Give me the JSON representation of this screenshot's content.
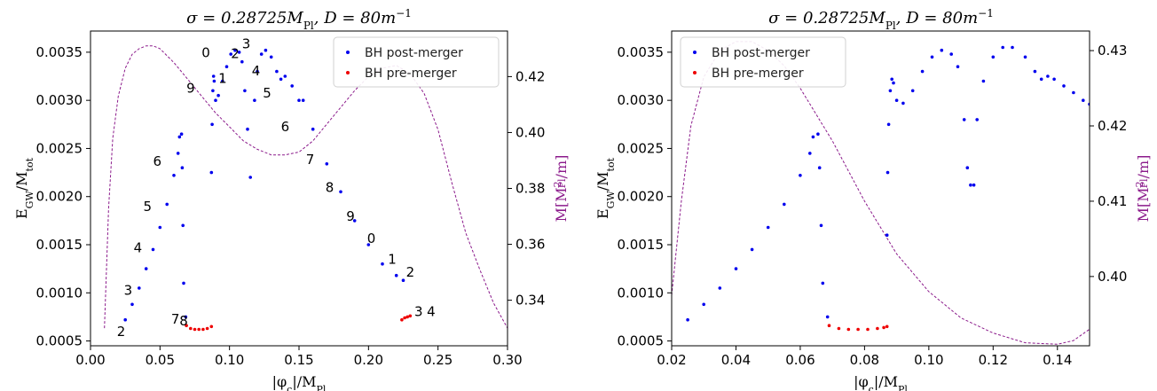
{
  "figure": {
    "panels": [
      {
        "title": "σ = 0.28725M_Pl, D = 80m⁻¹",
        "xlabel": "|φc|/M_Pl",
        "ylabel": "E_GW/M_tot",
        "y2label": "M[M²_Pl/m]",
        "legend": [
          "BH post-merger",
          "BH pre-merger"
        ]
      },
      {
        "title": "σ = 0.28725M_Pl, D = 80m⁻¹",
        "xlabel": "|φc|/M_Pl",
        "ylabel": "E_GW/M_tot",
        "y2label": "M[M²_Pl/m]",
        "legend": [
          "BH post-merger",
          "BH pre-merger"
        ]
      }
    ]
  },
  "chart_data": [
    {
      "type": "scatter",
      "title": "σ = 0.28725M_Pl, D = 80m⁻¹",
      "xlabel": "|φc|/M_Pl",
      "ylabel": "E_GW/M_tot",
      "y2label": "M[M²_Pl/m]",
      "xlim": [
        0.0,
        0.3
      ],
      "ylim": [
        0.00045,
        0.00372
      ],
      "y2lim": [
        0.3237,
        0.4363
      ],
      "x_ticks": [
        "0.00",
        "0.05",
        "0.10",
        "0.15",
        "0.20",
        "0.25",
        "0.30"
      ],
      "y_ticks": [
        "0.0005",
        "0.0010",
        "0.0015",
        "0.0020",
        "0.0025",
        "0.0030",
        "0.0035"
      ],
      "y2_ticks": [
        "0.34",
        "0.36",
        "0.38",
        "0.40",
        "0.42"
      ],
      "legend_position": "top-right",
      "grid": false,
      "colors": {
        "post": "#0000ee",
        "pre": "#ee0000",
        "mass": "#8b1a8b"
      },
      "series": [
        {
          "name": "BH post-merger",
          "points": [
            [
              0.025,
              0.00072
            ],
            [
              0.03,
              0.00088
            ],
            [
              0.035,
              0.00105
            ],
            [
              0.04,
              0.00125
            ],
            [
              0.045,
              0.00145
            ],
            [
              0.05,
              0.00168
            ],
            [
              0.055,
              0.00192
            ],
            [
              0.06,
              0.00222
            ],
            [
              0.063,
              0.00245
            ],
            [
              0.064,
              0.00262
            ],
            [
              0.0655,
              0.00265
            ],
            [
              0.066,
              0.0023
            ],
            [
              0.0665,
              0.0017
            ],
            [
              0.067,
              0.0011
            ],
            [
              0.0685,
              0.00075
            ],
            [
              0.087,
              0.00225
            ],
            [
              0.0875,
              0.00275
            ],
            [
              0.088,
              0.0031
            ],
            [
              0.0885,
              0.00325
            ],
            [
              0.089,
              0.0032
            ],
            [
              0.09,
              0.003
            ],
            [
              0.092,
              0.00305
            ],
            [
              0.095,
              0.0032
            ],
            [
              0.098,
              0.00335
            ],
            [
              0.101,
              0.00348
            ],
            [
              0.104,
              0.00352
            ],
            [
              0.107,
              0.0035
            ],
            [
              0.109,
              0.0034
            ],
            [
              0.111,
              0.0031
            ],
            [
              0.113,
              0.0027
            ],
            [
              0.115,
              0.0022
            ],
            [
              0.118,
              0.003
            ],
            [
              0.12,
              0.0033
            ],
            [
              0.123,
              0.00348
            ],
            [
              0.126,
              0.00352
            ],
            [
              0.13,
              0.00345
            ],
            [
              0.134,
              0.0033
            ],
            [
              0.137,
              0.00322
            ],
            [
              0.14,
              0.00325
            ],
            [
              0.145,
              0.00315
            ],
            [
              0.15,
              0.003
            ],
            [
              0.153,
              0.003
            ],
            [
              0.16,
              0.0027
            ],
            [
              0.17,
              0.00234
            ],
            [
              0.18,
              0.00205
            ],
            [
              0.19,
              0.00175
            ],
            [
              0.2,
              0.0015
            ],
            [
              0.21,
              0.0013
            ],
            [
              0.22,
              0.00118
            ],
            [
              0.225,
              0.00113
            ]
          ]
        },
        {
          "name": "BH pre-merger",
          "points": [
            [
              0.069,
              0.00066
            ],
            [
              0.072,
              0.00063
            ],
            [
              0.075,
              0.00062
            ],
            [
              0.078,
              0.00062
            ],
            [
              0.081,
              0.00062
            ],
            [
              0.084,
              0.00063
            ],
            [
              0.087,
              0.00065
            ],
            [
              0.224,
              0.00072
            ],
            [
              0.226,
              0.00074
            ],
            [
              0.228,
              0.00075
            ],
            [
              0.23,
              0.00076
            ]
          ]
        },
        {
          "name": "M",
          "axis": "y2",
          "style": "dashed-line",
          "points": [
            [
              0.01,
              0.33
            ],
            [
              0.013,
              0.373
            ],
            [
              0.016,
              0.398
            ],
            [
              0.02,
              0.413
            ],
            [
              0.025,
              0.423
            ],
            [
              0.03,
              0.428
            ],
            [
              0.035,
              0.43
            ],
            [
              0.04,
              0.431
            ],
            [
              0.045,
              0.431
            ],
            [
              0.05,
              0.43
            ],
            [
              0.06,
              0.425
            ],
            [
              0.07,
              0.419
            ],
            [
              0.08,
              0.413
            ],
            [
              0.09,
              0.407
            ],
            [
              0.1,
              0.402
            ],
            [
              0.11,
              0.397
            ],
            [
              0.12,
              0.394
            ],
            [
              0.13,
              0.392
            ],
            [
              0.14,
              0.392
            ],
            [
              0.15,
              0.393
            ],
            [
              0.16,
              0.397
            ],
            [
              0.17,
              0.403
            ],
            [
              0.18,
              0.409
            ],
            [
              0.19,
              0.415
            ],
            [
              0.2,
              0.42
            ],
            [
              0.21,
              0.423
            ],
            [
              0.22,
              0.424
            ],
            [
              0.23,
              0.421
            ],
            [
              0.24,
              0.414
            ],
            [
              0.25,
              0.401
            ],
            [
              0.26,
              0.382
            ],
            [
              0.27,
              0.364
            ],
            [
              0.28,
              0.351
            ],
            [
              0.29,
              0.339
            ],
            [
              0.3,
              0.33
            ]
          ]
        }
      ],
      "annotations": [
        {
          "text": "2",
          "x": 0.019,
          "y": 0.00055
        },
        {
          "text": "3",
          "x": 0.024,
          "y": 0.00098
        },
        {
          "text": "4",
          "x": 0.031,
          "y": 0.00142
        },
        {
          "text": "5",
          "x": 0.038,
          "y": 0.00185
        },
        {
          "text": "6",
          "x": 0.045,
          "y": 0.00232
        },
        {
          "text": "7",
          "x": 0.058,
          "y": 0.00068
        },
        {
          "text": "8",
          "x": 0.064,
          "y": 0.00066
        },
        {
          "text": "9",
          "x": 0.069,
          "y": 0.00308
        },
        {
          "text": "0",
          "x": 0.08,
          "y": 0.00345
        },
        {
          "text": "1",
          "x": 0.092,
          "y": 0.00318
        },
        {
          "text": "2",
          "x": 0.101,
          "y": 0.00344
        },
        {
          "text": "3",
          "x": 0.109,
          "y": 0.00354
        },
        {
          "text": "4",
          "x": 0.116,
          "y": 0.00326
        },
        {
          "text": "5",
          "x": 0.124,
          "y": 0.00303
        },
        {
          "text": "6",
          "x": 0.137,
          "y": 0.00268
        },
        {
          "text": "7",
          "x": 0.155,
          "y": 0.00234
        },
        {
          "text": "8",
          "x": 0.169,
          "y": 0.00205
        },
        {
          "text": "9",
          "x": 0.184,
          "y": 0.00175
        },
        {
          "text": "0",
          "x": 0.199,
          "y": 0.00152
        },
        {
          "text": "1",
          "x": 0.214,
          "y": 0.0013
        },
        {
          "text": "2",
          "x": 0.227,
          "y": 0.00117
        },
        {
          "text": "3",
          "x": 0.233,
          "y": 0.00076
        },
        {
          "text": "4",
          "x": 0.242,
          "y": 0.00076
        }
      ]
    },
    {
      "type": "scatter",
      "title": "σ = 0.28725M_Pl, D = 80m⁻¹",
      "xlabel": "|φc|/M_Pl",
      "ylabel": "E_GW/M_tot",
      "y2label": "M[M²_Pl/m]",
      "xlim": [
        0.02,
        0.15
      ],
      "ylim": [
        0.00045,
        0.00372
      ],
      "y2lim": [
        0.3908,
        0.4326
      ],
      "x_ticks": [
        "0.02",
        "0.04",
        "0.06",
        "0.08",
        "0.10",
        "0.12",
        "0.14"
      ],
      "y_ticks": [
        "0.0005",
        "0.0010",
        "0.0015",
        "0.0020",
        "0.0025",
        "0.0030",
        "0.0035"
      ],
      "y2_ticks": [
        "0.40",
        "0.41",
        "0.42",
        "0.43"
      ],
      "legend_position": "top-left",
      "grid": false,
      "colors": {
        "post": "#0000ee",
        "pre": "#ee0000",
        "mass": "#8b1a8b"
      },
      "series": [
        {
          "name": "BH post-merger",
          "points": [
            [
              0.025,
              0.00072
            ],
            [
              0.03,
              0.00088
            ],
            [
              0.035,
              0.00105
            ],
            [
              0.04,
              0.00125
            ],
            [
              0.045,
              0.00145
            ],
            [
              0.05,
              0.00168
            ],
            [
              0.055,
              0.00192
            ],
            [
              0.06,
              0.00222
            ],
            [
              0.063,
              0.00245
            ],
            [
              0.064,
              0.00262
            ],
            [
              0.0655,
              0.00265
            ],
            [
              0.066,
              0.0023
            ],
            [
              0.0665,
              0.0017
            ],
            [
              0.067,
              0.0011
            ],
            [
              0.0685,
              0.00075
            ],
            [
              0.087,
              0.0016
            ],
            [
              0.0872,
              0.00225
            ],
            [
              0.0875,
              0.00275
            ],
            [
              0.088,
              0.0031
            ],
            [
              0.0885,
              0.00322
            ],
            [
              0.089,
              0.00318
            ],
            [
              0.09,
              0.003
            ],
            [
              0.092,
              0.00297
            ],
            [
              0.095,
              0.0031
            ],
            [
              0.098,
              0.0033
            ],
            [
              0.101,
              0.00345
            ],
            [
              0.104,
              0.00352
            ],
            [
              0.107,
              0.00348
            ],
            [
              0.109,
              0.00335
            ],
            [
              0.111,
              0.0028
            ],
            [
              0.112,
              0.0023
            ],
            [
              0.113,
              0.00212
            ],
            [
              0.114,
              0.00212
            ],
            [
              0.115,
              0.0028
            ],
            [
              0.117,
              0.0032
            ],
            [
              0.12,
              0.00345
            ],
            [
              0.123,
              0.00355
            ],
            [
              0.126,
              0.00355
            ],
            [
              0.13,
              0.00345
            ],
            [
              0.133,
              0.0033
            ],
            [
              0.135,
              0.00322
            ],
            [
              0.137,
              0.00325
            ],
            [
              0.139,
              0.00322
            ],
            [
              0.142,
              0.00315
            ],
            [
              0.145,
              0.00308
            ],
            [
              0.148,
              0.003
            ],
            [
              0.15,
              0.00296
            ]
          ]
        },
        {
          "name": "BH pre-merger",
          "points": [
            [
              0.069,
              0.00066
            ],
            [
              0.072,
              0.00063
            ],
            [
              0.075,
              0.00062
            ],
            [
              0.078,
              0.00062
            ],
            [
              0.081,
              0.00062
            ],
            [
              0.084,
              0.00063
            ],
            [
              0.086,
              0.00064
            ],
            [
              0.087,
              0.00065
            ]
          ]
        },
        {
          "name": "M",
          "axis": "y2",
          "style": "dashed-line",
          "points": [
            [
              0.02,
              0.3975
            ],
            [
              0.023,
              0.41
            ],
            [
              0.026,
              0.42
            ],
            [
              0.03,
              0.4265
            ],
            [
              0.035,
              0.43
            ],
            [
              0.04,
              0.4312
            ],
            [
              0.045,
              0.4312
            ],
            [
              0.05,
              0.43
            ],
            [
              0.055,
              0.428
            ],
            [
              0.06,
              0.425
            ],
            [
              0.07,
              0.418
            ],
            [
              0.08,
              0.41
            ],
            [
              0.09,
              0.403
            ],
            [
              0.1,
              0.398
            ],
            [
              0.11,
              0.3945
            ],
            [
              0.12,
              0.3925
            ],
            [
              0.13,
              0.3912
            ],
            [
              0.14,
              0.391
            ],
            [
              0.145,
              0.3915
            ],
            [
              0.15,
              0.393
            ]
          ]
        }
      ],
      "annotations": []
    }
  ]
}
